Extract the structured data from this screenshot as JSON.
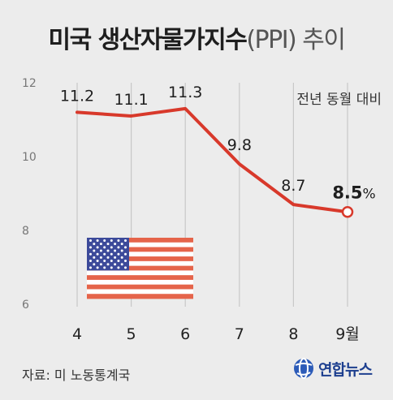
{
  "title": {
    "main": "미국 생산자물가지수",
    "paren": "(PPI) 추이"
  },
  "source": "자료: 미 노동통계국",
  "logo_text": "연합뉴스",
  "colors": {
    "line": "#d8392b",
    "background": "#ececec",
    "grid": "#c8c8c8",
    "logo": "#1d3f8f"
  },
  "chart_data": {
    "type": "line",
    "x": [
      "4",
      "5",
      "6",
      "7",
      "8",
      "9월"
    ],
    "values": [
      11.2,
      11.1,
      11.3,
      9.8,
      8.7,
      8.5
    ],
    "data_labels": [
      "11.2",
      "11.1",
      "11.3",
      "9.8",
      "8.7",
      "8.5"
    ],
    "last_unit": "%",
    "yticks": [
      "12",
      "10",
      "8",
      "6"
    ],
    "ylim": [
      6,
      12
    ],
    "annotation": "전년 동월 대비",
    "grid": "vertical"
  },
  "decoration": {
    "flag": "us-flag-icon"
  }
}
